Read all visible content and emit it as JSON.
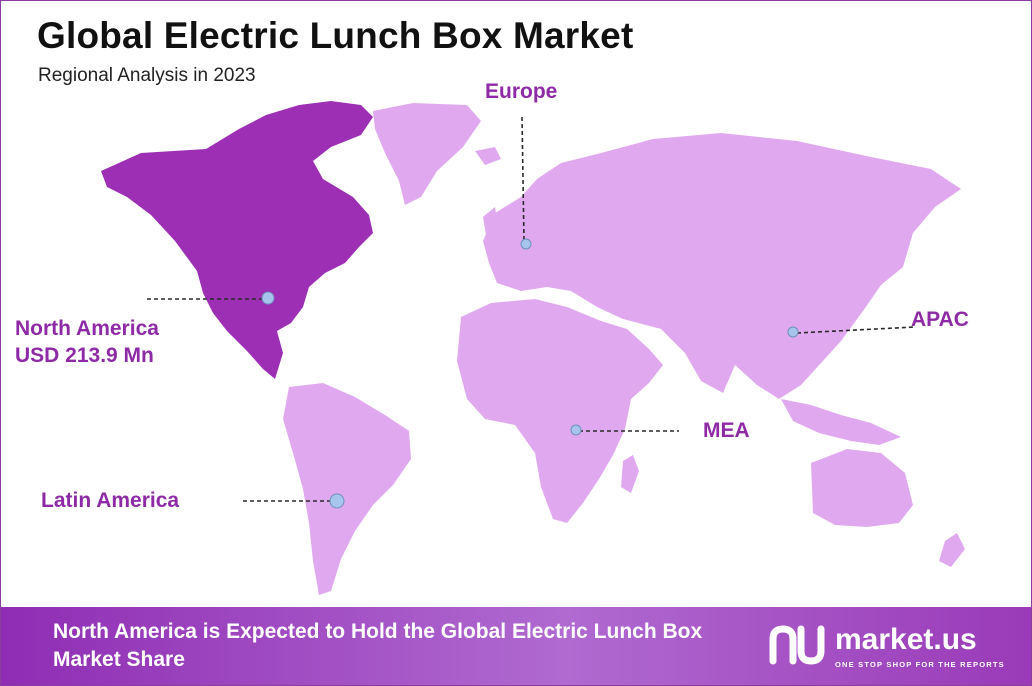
{
  "header": {
    "title": "Global Electric Lunch Box Market",
    "subtitle": "Regional Analysis in 2023"
  },
  "regions": [
    {
      "name": "North America",
      "value": "USD 213.9  Mn",
      "highlight": true,
      "color": "#9d2fb5"
    },
    {
      "name": "Europe",
      "highlight": false,
      "color": "#e0a9ef"
    },
    {
      "name": "APAC",
      "highlight": false,
      "color": "#e0a9ef"
    },
    {
      "name": "MEA",
      "highlight": false,
      "color": "#e0a9ef"
    },
    {
      "name": "Latin America",
      "highlight": false,
      "color": "#e0a9ef"
    }
  ],
  "footer": {
    "text": "North America is Expected to Hold the Global Electric Lunch Box Market Share"
  },
  "logo": {
    "name": "market.us",
    "tagline": "ONE STOP SHOP FOR THE REPORTS"
  },
  "colors": {
    "accent": "#8e2aa6",
    "highlight_region": "#9d2fb5",
    "other_regions": "#e0a9ef",
    "marker": "#a6c4ec",
    "footer_gradient": [
      "#8f2db4",
      "#b06ad0",
      "#9a3ab8"
    ]
  }
}
